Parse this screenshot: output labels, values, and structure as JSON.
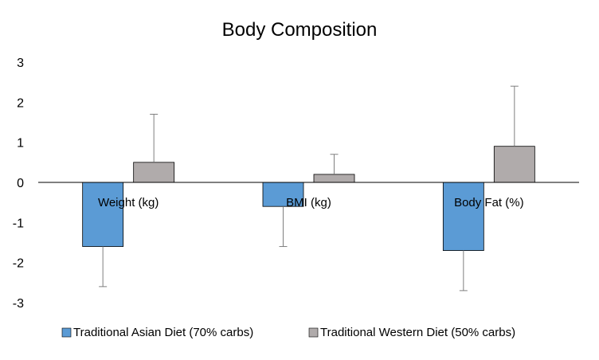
{
  "chart_data": {
    "type": "bar",
    "title": "Body Composition",
    "xlabel": "",
    "ylabel": "",
    "categories": [
      "Weight (kg)",
      "BMI (kg)",
      "Body Fat (%)"
    ],
    "ylim": [
      -3,
      3
    ],
    "yticks": [
      "3",
      "2",
      "1",
      "0",
      "-1",
      "-2",
      "-3"
    ],
    "grid": false,
    "legend_position": "bottom",
    "series": [
      {
        "name": "Traditional Asian Diet (70% carbs)",
        "values": [
          -1.6,
          -0.6,
          -1.7
        ],
        "error": [
          1.0,
          1.0,
          1.0
        ],
        "color": "#5B9BD5"
      },
      {
        "name": "Traditional Western Diet (50% carbs)",
        "values": [
          0.5,
          0.2,
          0.9
        ],
        "error": [
          1.2,
          0.5,
          1.5
        ],
        "color": "#B0ABAB"
      }
    ]
  }
}
